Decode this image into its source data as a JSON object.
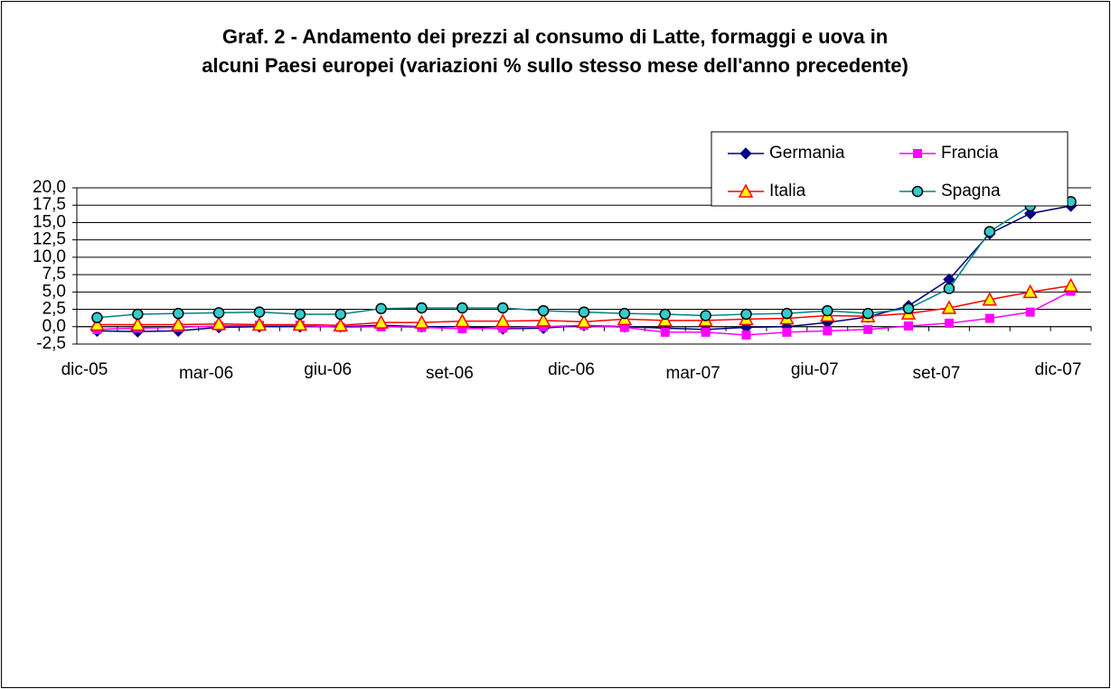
{
  "chart_data": {
    "type": "line",
    "title": [
      "Graf. 2 - Andamento dei prezzi al consumo di Latte, formaggi e uova in",
      "alcuni Paesi europei (variazioni % sullo stesso mese dell'anno precedente)"
    ],
    "categories": [
      "dic-05",
      null,
      null,
      "mar-06",
      null,
      null,
      "giu-06",
      null,
      null,
      "set-06",
      null,
      null,
      "dic-06",
      null,
      null,
      "mar-07",
      null,
      null,
      "giu-07",
      null,
      null,
      "set-07",
      null,
      null,
      "dic-07"
    ],
    "series": [
      {
        "name": "Germania",
        "color": "#000080",
        "marker": "diamond",
        "marker_color": "#000080",
        "values": [
          -0.6,
          -0.7,
          -0.6,
          -0.1,
          0.0,
          0.0,
          0.0,
          0.2,
          0.0,
          0.0,
          -0.3,
          -0.2,
          0.2,
          0.0,
          -0.2,
          -0.4,
          -0.1,
          0.0,
          0.6,
          1.4,
          3.0,
          6.8,
          13.4,
          16.3,
          17.4
        ]
      },
      {
        "name": "Francia",
        "color": "#ff00ff",
        "marker": "square",
        "marker_color": "#ff00ff",
        "values": [
          -0.4,
          -0.2,
          -0.1,
          0.1,
          0.2,
          0.2,
          -0.1,
          0.0,
          -0.1,
          -0.3,
          -0.2,
          0.0,
          0.2,
          -0.1,
          -0.8,
          -0.8,
          -1.2,
          -0.8,
          -0.6,
          -0.4,
          0.1,
          0.5,
          1.2,
          2.1,
          5.1
        ]
      },
      {
        "name": "Italia",
        "color": "#ff0000",
        "marker": "triangle",
        "marker_color": "#ffff00",
        "values": [
          0.3,
          0.3,
          0.3,
          0.4,
          0.3,
          0.3,
          0.2,
          0.6,
          0.6,
          0.8,
          0.8,
          0.9,
          0.7,
          1.1,
          0.9,
          0.9,
          1.1,
          1.2,
          1.6,
          1.5,
          1.9,
          2.7,
          3.9,
          5.0,
          5.9
        ]
      },
      {
        "name": "Spagna",
        "color": "#008080",
        "marker": "circle",
        "marker_color": "#33cccc",
        "values": [
          1.3,
          1.8,
          1.9,
          2.0,
          2.1,
          1.8,
          1.8,
          2.6,
          2.7,
          2.7,
          2.7,
          2.3,
          2.1,
          1.9,
          1.8,
          1.6,
          1.8,
          1.9,
          2.3,
          1.9,
          2.6,
          5.5,
          13.7,
          17.4,
          18.0
        ]
      }
    ],
    "ylim": [
      -2.5,
      20
    ],
    "yticks": [
      {
        "value": -2.5,
        "label": "-2,5"
      },
      {
        "value": 0,
        "label": "0,0"
      },
      {
        "value": 2.5,
        "label": "2,5"
      },
      {
        "value": 5,
        "label": "5,0"
      },
      {
        "value": 7.5,
        "label": "7,5"
      },
      {
        "value": 10,
        "label": "10,0"
      },
      {
        "value": 12.5,
        "label": "12,5"
      },
      {
        "value": 15,
        "label": "15,0"
      },
      {
        "value": 17.5,
        "label": "17,5"
      },
      {
        "value": 20,
        "label": "20,0"
      }
    ],
    "grid": true,
    "legend": "top-right"
  }
}
